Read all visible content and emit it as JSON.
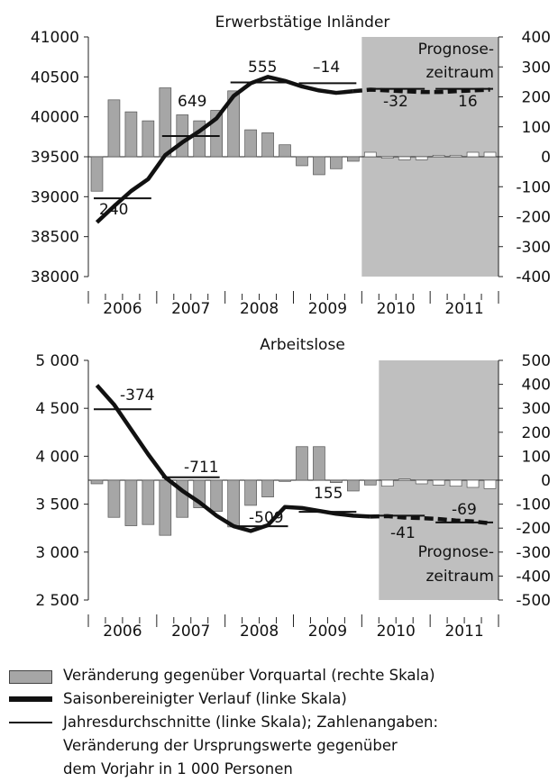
{
  "chart_data": [
    {
      "type": "bar+line",
      "title": "Erwerbstätige Inländer",
      "left_axis": {
        "ylim": [
          38000,
          41000
        ],
        "ticks": [
          "38000",
          "38500",
          "39000",
          "39500",
          "40000",
          "40500",
          "41000"
        ]
      },
      "right_axis": {
        "ylim": [
          -400,
          400
        ],
        "ticks": [
          "-400",
          "-300",
          "-200",
          "-100",
          "0",
          "100",
          "200",
          "300",
          "400"
        ]
      },
      "x_categories": [
        "2006",
        "2007",
        "2008",
        "2009",
        "2010",
        "2011"
      ],
      "forecast_from_quarter": 16,
      "forecast_label": [
        "Prognose-",
        "zeitraum"
      ],
      "bar_values_right": [
        -115,
        190,
        150,
        120,
        230,
        140,
        120,
        155,
        220,
        90,
        80,
        40,
        -30,
        -60,
        -40,
        -15,
        15,
        -5,
        -10,
        -10,
        5,
        5,
        15,
        15
      ],
      "seasonal_line_left": [
        38680,
        38880,
        39070,
        39220,
        39520,
        39680,
        39820,
        39980,
        40260,
        40420,
        40500,
        40450,
        40380,
        40330,
        40300,
        40320,
        40340,
        40330,
        40320,
        40310,
        40310,
        40320,
        40330,
        40340
      ],
      "annual_averages": [
        {
          "year": "2006",
          "level_left": 38980,
          "change": "240"
        },
        {
          "year": "2007",
          "level_left": 39760,
          "change": "649"
        },
        {
          "year": "2008",
          "level_left": 40430,
          "change": "555"
        },
        {
          "year": "2009",
          "level_left": 40420,
          "change": "–14"
        },
        {
          "year": "2010",
          "level_left": 40350,
          "change": "-32"
        },
        {
          "year": "2011",
          "level_left": 40350,
          "change": "16"
        }
      ]
    },
    {
      "type": "bar+line",
      "title": "Arbeitslose",
      "left_axis": {
        "ylim": [
          2500,
          5000
        ],
        "ticks": [
          "2 500",
          "3 000",
          "3 500",
          "4 000",
          "4 500",
          "5 000"
        ]
      },
      "right_axis": {
        "ylim": [
          -500,
          500
        ],
        "ticks": [
          "-500",
          "-400",
          "-300",
          "-200",
          "-100",
          "0",
          "100",
          "200",
          "300",
          "400",
          "500"
        ]
      },
      "x_categories": [
        "2006",
        "2007",
        "2008",
        "2009",
        "2010",
        "2011"
      ],
      "forecast_from_quarter": 17,
      "forecast_label": [
        "Prognose-",
        "zeitraum"
      ],
      "bar_values_right": [
        -15,
        -155,
        -190,
        -185,
        -230,
        -155,
        -115,
        -130,
        -195,
        -105,
        -70,
        -5,
        140,
        140,
        -10,
        -45,
        -20,
        -25,
        5,
        -15,
        -20,
        -25,
        -30,
        -35
      ],
      "seasonal_line_left": [
        4740,
        4540,
        4280,
        4020,
        3780,
        3640,
        3520,
        3380,
        3270,
        3220,
        3280,
        3470,
        3460,
        3430,
        3400,
        3380,
        3370,
        3375,
        3360,
        3355,
        3345,
        3330,
        3320,
        3300
      ],
      "annual_averages": [
        {
          "year": "2006",
          "level_left": 4490,
          "change": "-374"
        },
        {
          "year": "2007",
          "level_left": 3780,
          "change": "-711"
        },
        {
          "year": "2008",
          "level_left": 3270,
          "change": "-509"
        },
        {
          "year": "2009",
          "level_left": 3420,
          "change": "155"
        },
        {
          "year": "2010",
          "level_left": 3380,
          "change": "-41"
        },
        {
          "year": "2011",
          "level_left": 3310,
          "change": "-69"
        }
      ]
    }
  ],
  "legend": {
    "bars": "Veränderung gegenüber Vorquartal  (rechte Skala)",
    "thick_line": "Saisonbereinigter Verlauf (linke Skala)",
    "thin_line": "Jahresdurchschnitte (linke Skala); Zahlenangaben:",
    "note_line1": "Veränderung der Ursprungswerte gegenüber",
    "note_line2": "dem Vorjahr in 1 000 Personen"
  },
  "colors": {
    "bar": "#a6a6a6",
    "forecast_bg": "#bfbfbf",
    "line": "#111111"
  }
}
